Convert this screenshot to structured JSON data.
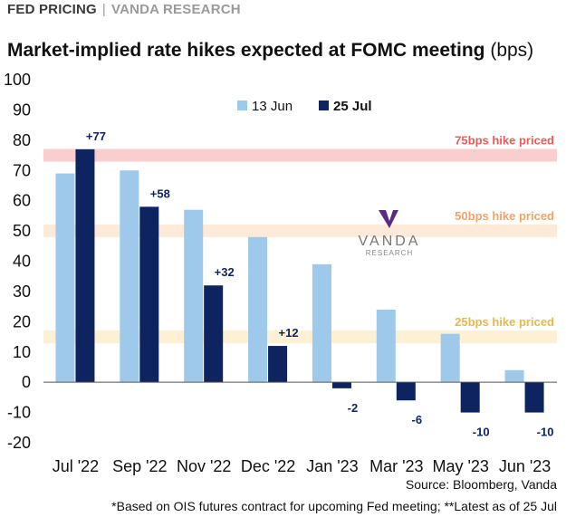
{
  "header": {
    "kicker": "FED PRICING",
    "separator": "|",
    "brand": "VANDA RESEARCH"
  },
  "footer": {
    "source": "Source: Bloomberg, Vanda",
    "note": "*Based on OIS futures contract for upcoming Fed meeting; **Latest as of 25 Jul"
  },
  "watermark": {
    "name": "VANDA",
    "sub": "RESEARCH"
  },
  "chart_data": {
    "type": "bar",
    "title": "Market-implied rate hikes expected at FOMC meeting",
    "title_unit": "(bps)",
    "categories": [
      "Jul '22",
      "Sep '22",
      "Nov '22",
      "Dec '22",
      "Jan '23",
      "Mar '23",
      "May '23",
      "Jun '23"
    ],
    "series": [
      {
        "name": "13 Jun",
        "color": "#9ec9ea",
        "values": [
          69,
          70,
          57,
          48,
          39,
          24,
          16,
          4
        ]
      },
      {
        "name": "25 Jul",
        "color": "#0d2461",
        "values": [
          77,
          58,
          32,
          12,
          -2,
          -6,
          -10,
          -10
        ]
      }
    ],
    "data_labels": {
      "series": "25 Jul",
      "labels": [
        "+77",
        "+58",
        "+32",
        "+12",
        "-2",
        "-6",
        "-10",
        "-10"
      ]
    },
    "ylim": [
      -20,
      100
    ],
    "yticks": [
      -20,
      -10,
      0,
      10,
      20,
      30,
      40,
      50,
      60,
      70,
      80,
      90,
      100
    ],
    "grid": false,
    "legend_position": "top-center",
    "reference_bands": [
      {
        "label": "75bps hike priced",
        "value": 75,
        "color": "#f4a6a6",
        "text_color": "#ee5a5a"
      },
      {
        "label": "50bps hike priced",
        "value": 50,
        "color": "#fbd9b8",
        "text_color": "#f0a36a"
      },
      {
        "label": "25bps hike priced",
        "value": 15,
        "color": "#fbe3b3",
        "text_color": "#e8b84a"
      }
    ]
  }
}
